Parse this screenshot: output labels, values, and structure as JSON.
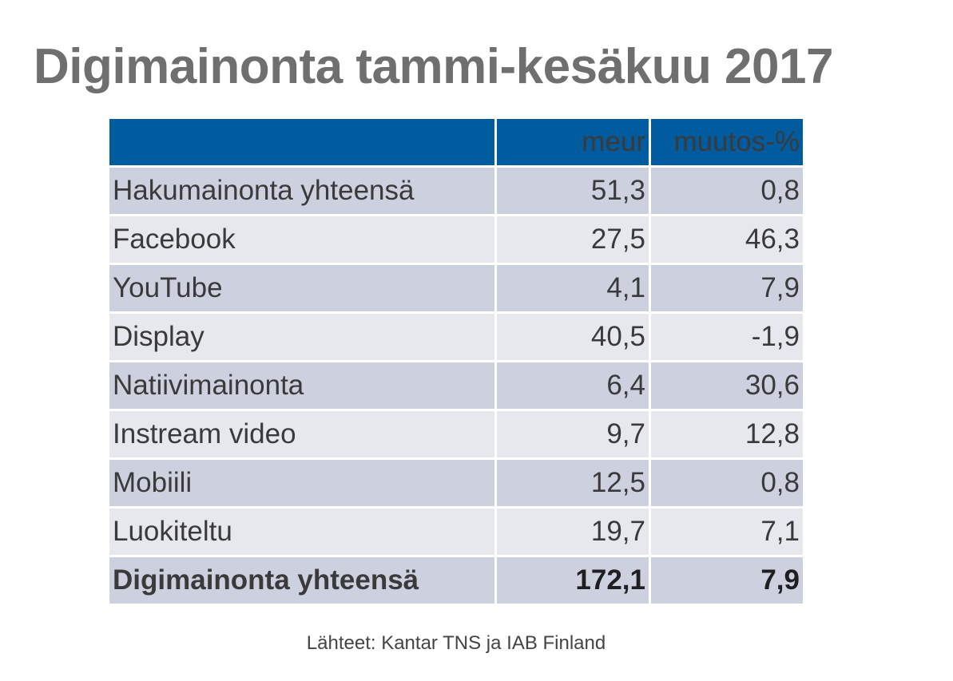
{
  "chart_data": {
    "type": "table",
    "title": "Digimainonta tammi-kesäkuu 2017",
    "columns": [
      "",
      "meur",
      "muutos-%"
    ],
    "rows": [
      {
        "label": "Hakumainonta yhteensä",
        "meur": "51,3",
        "change": "0,8"
      },
      {
        "label": "Facebook",
        "meur": "27,5",
        "change": "46,3"
      },
      {
        "label": "YouTube",
        "meur": "4,1",
        "change": "7,9"
      },
      {
        "label": "Display",
        "meur": "40,5",
        "change": "-1,9"
      },
      {
        "label": "Natiivimainonta",
        "meur": "6,4",
        "change": "30,6"
      },
      {
        "label": "Instream video",
        "meur": "9,7",
        "change": "12,8"
      },
      {
        "label": "Mobiili",
        "meur": "12,5",
        "change": "0,8"
      },
      {
        "label": "Luokiteltu",
        "meur": "19,7",
        "change": "7,1"
      }
    ],
    "total": {
      "label": "Digimainonta yhteensä",
      "meur": "172,1",
      "change": "7,9"
    },
    "source": "Lähteet: Kantar TNS ja IAB Finland"
  },
  "colors": {
    "header_bg": "#005b9f",
    "row_dark": "#cdd1df",
    "row_light": "#e6e8ee",
    "title": "#6f6f6f"
  }
}
